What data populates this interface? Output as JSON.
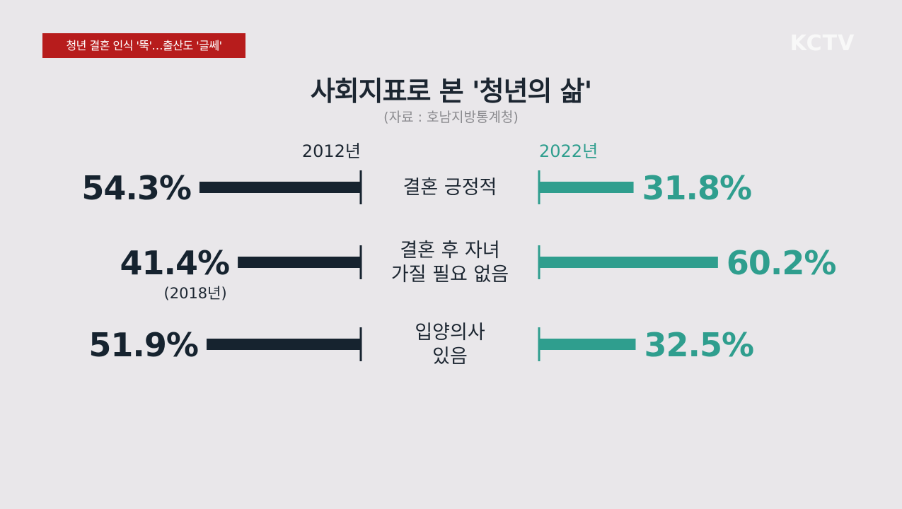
{
  "banner": {
    "headline": "청년 결혼 인식 '뚝'…출산도 '글쎄'"
  },
  "logo": {
    "text": "KCTV"
  },
  "header": {
    "title": "사회지표로 본 '청년의 삶'",
    "source": "(자료 : 호남지방통계청)"
  },
  "colors": {
    "left_series": "#16232f",
    "right_series": "#2f9e8e",
    "text_dark": "#1c2631",
    "banner_bg": "#b71c1c",
    "background": "#e9e7ea"
  },
  "chart_data": {
    "type": "bar",
    "layout": "butterfly",
    "title": "사회지표로 본 '청년의 삶'",
    "source": "(자료 : 호남지방통계청)",
    "unit": "%",
    "series": [
      {
        "name": "2012년",
        "values": [
          54.3,
          41.4,
          51.9
        ],
        "labels": [
          "54.3%",
          "41.4%",
          "51.9%"
        ],
        "notes": [
          "",
          "(2018년)",
          ""
        ]
      },
      {
        "name": "2022년",
        "values": [
          31.8,
          60.2,
          32.5
        ],
        "labels": [
          "31.8%",
          "60.2%",
          "32.5%"
        ],
        "notes": [
          "",
          "",
          ""
        ]
      }
    ],
    "categories": [
      {
        "lines": [
          "결혼 긍정적"
        ]
      },
      {
        "lines": [
          "결혼 후 자녀",
          "가질 필요 없음"
        ]
      },
      {
        "lines": [
          "입양의사",
          "있음"
        ]
      }
    ]
  }
}
